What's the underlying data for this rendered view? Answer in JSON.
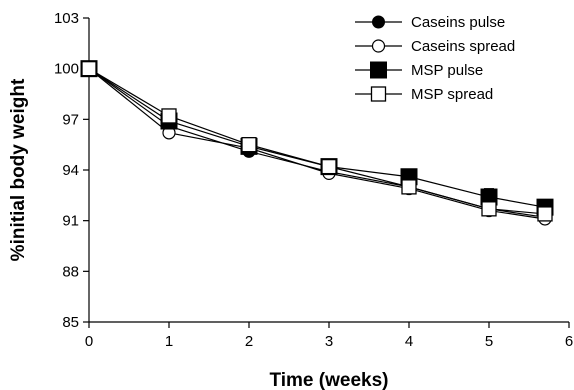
{
  "chart_data": {
    "type": "line",
    "xlabel": "Time (weeks)",
    "ylabel": "%initial body weight",
    "xlim": [
      0,
      6
    ],
    "ylim": [
      85,
      103
    ],
    "xticks": [
      0,
      1,
      2,
      3,
      4,
      5,
      6
    ],
    "yticks": [
      85,
      88,
      91,
      94,
      97,
      100,
      103
    ],
    "grid": false,
    "legend_position": "top-right",
    "x": [
      0,
      1,
      2,
      3,
      4,
      5,
      5.7
    ],
    "series": [
      {
        "name": "Caseins pulse",
        "marker": "filled-circle",
        "color": "#000000",
        "values": [
          100,
          96.6,
          95.1,
          93.9,
          93.0,
          91.7,
          91.2
        ],
        "error_up": [
          0,
          0,
          0,
          0,
          0,
          0,
          0
        ]
      },
      {
        "name": "Caseins spread",
        "marker": "open-circle",
        "color": "#000000",
        "values": [
          100,
          96.2,
          95.3,
          93.8,
          92.9,
          91.6,
          91.1
        ],
        "error_up": [
          0,
          0,
          0,
          0,
          0,
          0,
          0
        ]
      },
      {
        "name": "MSP pulse",
        "marker": "filled-square",
        "color": "#000000",
        "values": [
          100,
          96.9,
          95.4,
          94.2,
          93.6,
          92.4,
          91.8
        ],
        "error_up": [
          0,
          0.4,
          0.5,
          0.3,
          0.4,
          0.5,
          0.4
        ]
      },
      {
        "name": "MSP spread",
        "marker": "open-square",
        "color": "#000000",
        "values": [
          100,
          97.2,
          95.5,
          94.2,
          93.0,
          91.7,
          91.4
        ],
        "error_up": [
          0,
          0,
          0,
          0,
          0,
          0,
          0
        ]
      }
    ]
  }
}
